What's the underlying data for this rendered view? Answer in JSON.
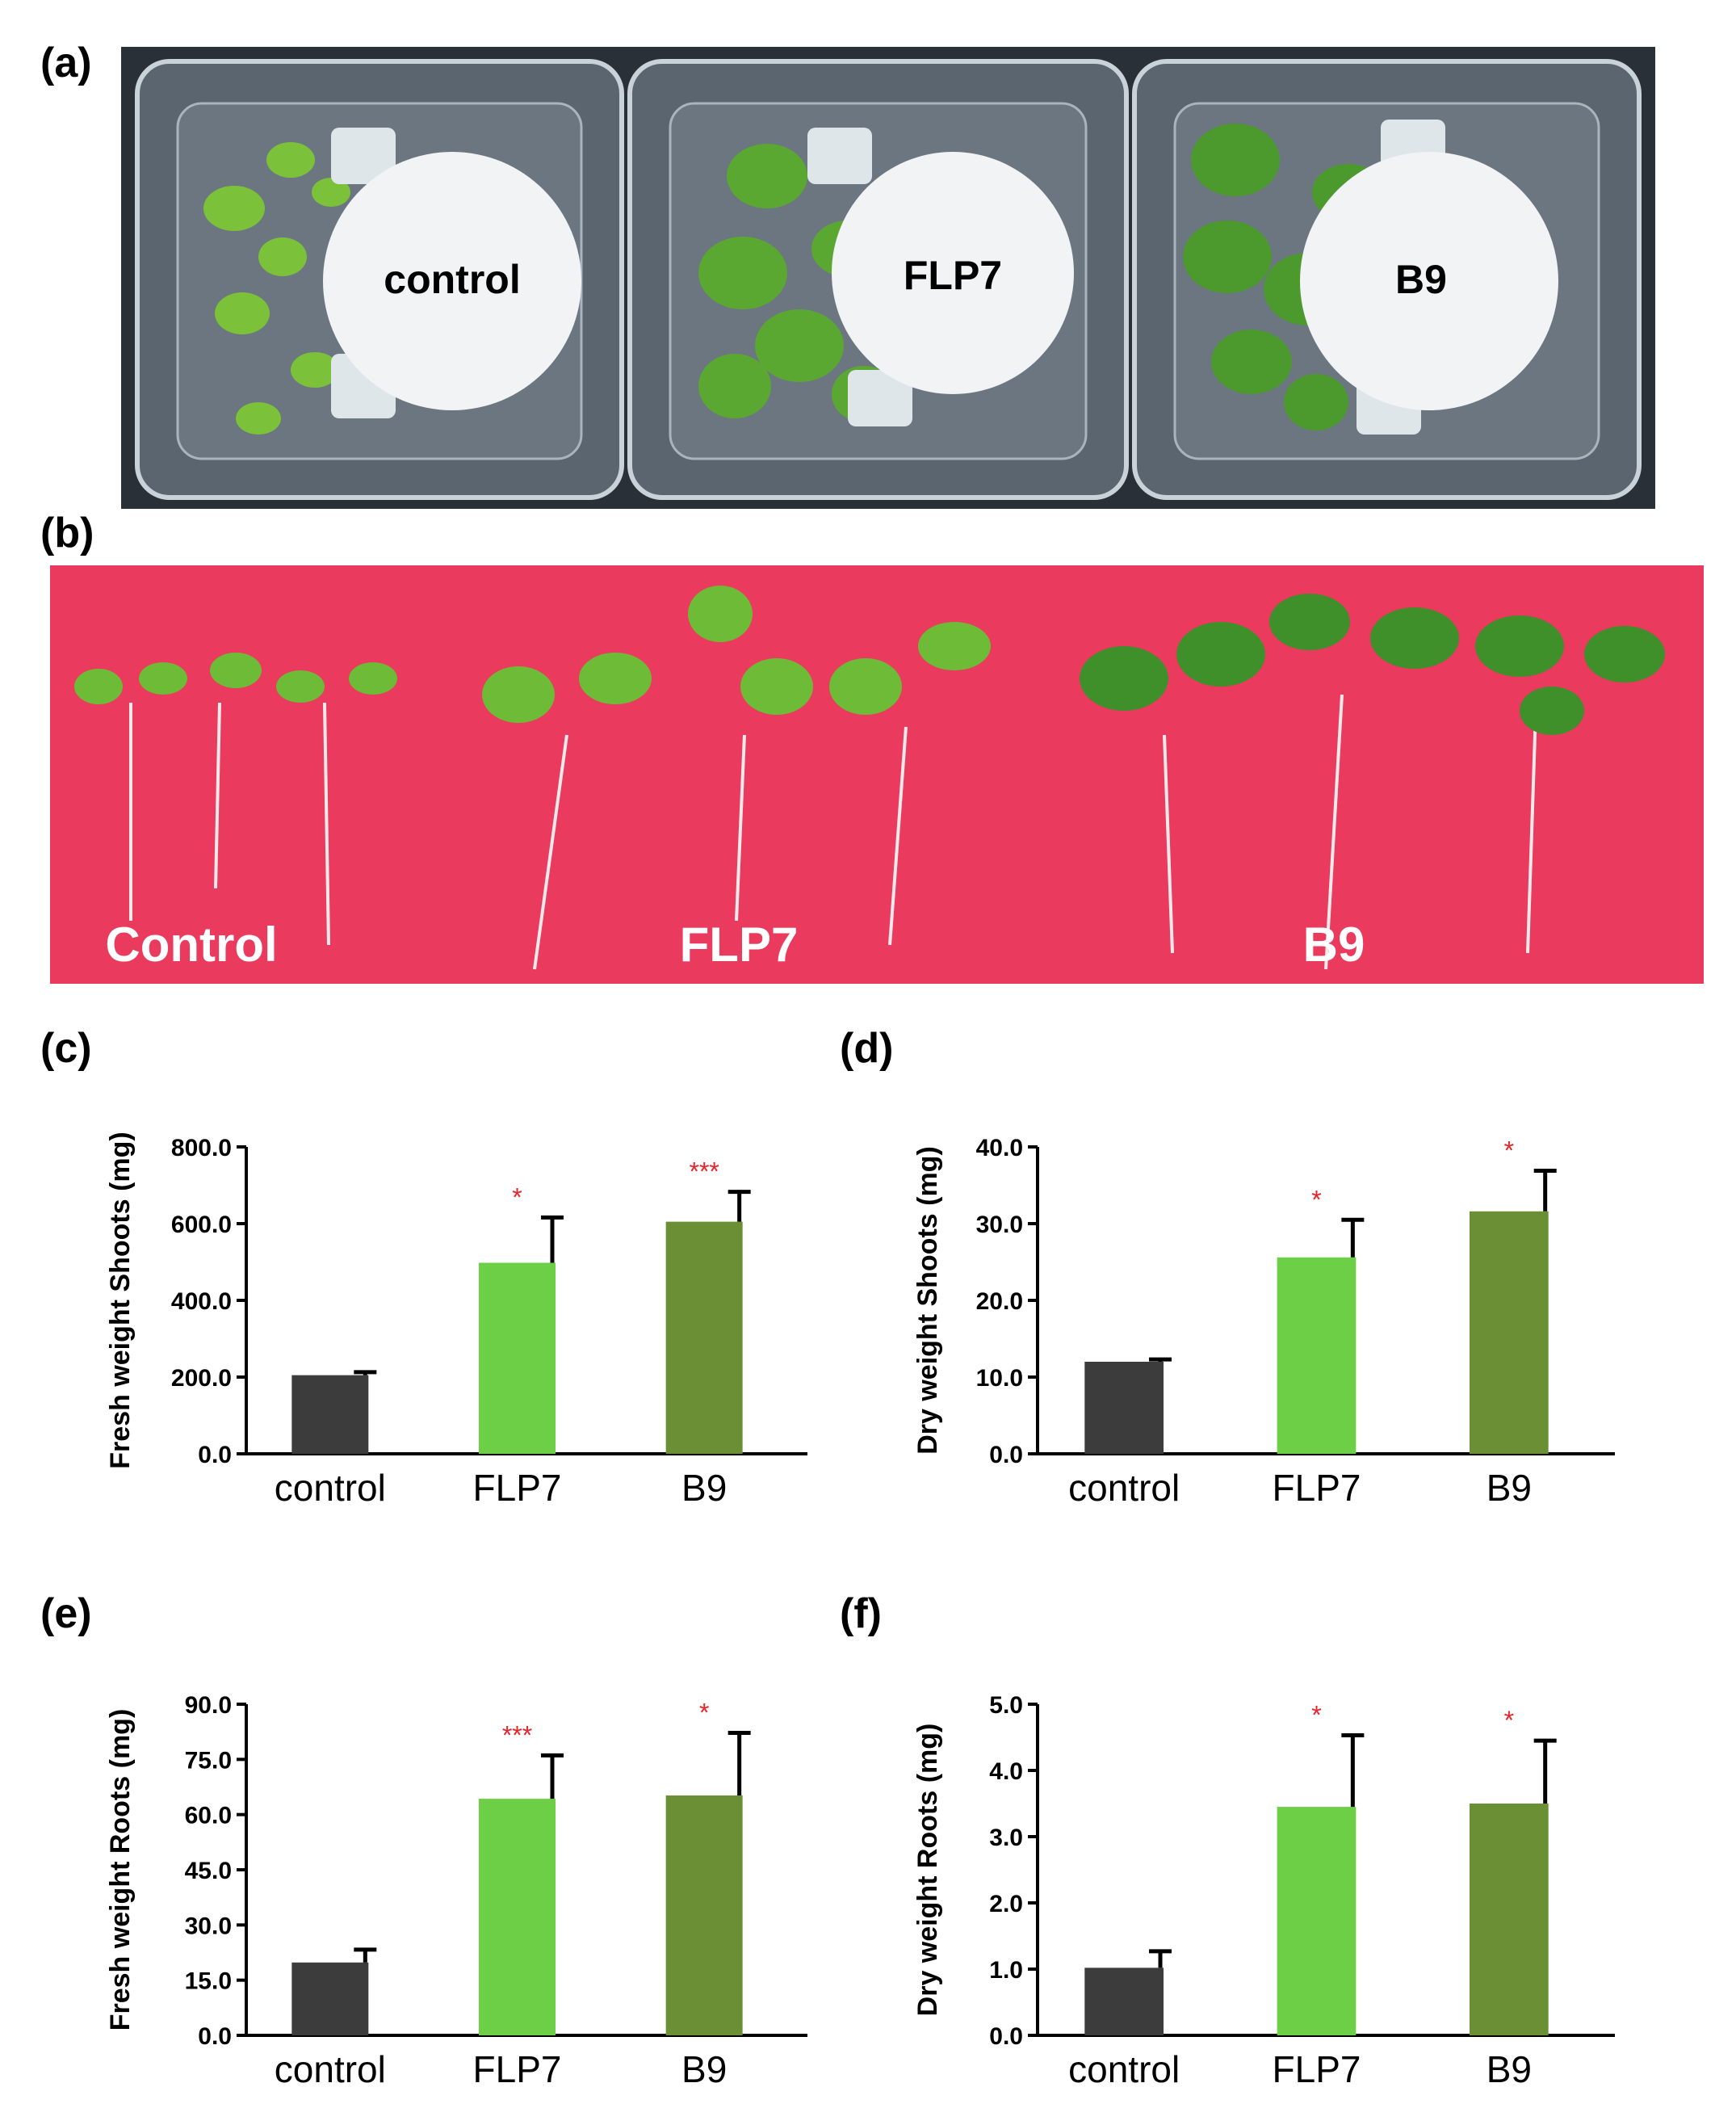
{
  "panels": {
    "a": {
      "label": "(a)",
      "tray_labels": [
        "control",
        "FLP7",
        "B9"
      ]
    },
    "b": {
      "label": "(b)",
      "labels": [
        "Control",
        "FLP7",
        "B9"
      ]
    },
    "c": {
      "label": "(c)"
    },
    "d": {
      "label": "(d)"
    },
    "e": {
      "label": "(e)"
    },
    "f": {
      "label": "(f)"
    }
  },
  "colors": {
    "control": "#3c3c3c",
    "FLP7": "#6dcf45",
    "B9": "#6a8f34",
    "significance": "#e8232a",
    "photo_a_bg": "#2a3038",
    "photo_b_bg": "#ea3b5e"
  },
  "chart_data": [
    {
      "id": "c",
      "type": "bar",
      "categories": [
        "control",
        "FLP7",
        "B9"
      ],
      "values": [
        205,
        498,
        605
      ],
      "errors": [
        8,
        118,
        78
      ],
      "significance": [
        "",
        "*",
        "***"
      ],
      "ylabel": "Fresh weight Shoots (mg)",
      "ylim": [
        0,
        800
      ],
      "yticks": [
        "0.0",
        "200.0",
        "400.0",
        "600.0",
        "800.0"
      ]
    },
    {
      "id": "d",
      "type": "bar",
      "categories": [
        "control",
        "FLP7",
        "B9"
      ],
      "values": [
        12.0,
        25.6,
        31.6
      ],
      "errors": [
        0.3,
        4.9,
        5.3
      ],
      "significance": [
        "",
        "*",
        "*"
      ],
      "ylabel": "Dry weight Shoots (mg)",
      "ylim": [
        0,
        40
      ],
      "yticks": [
        "0.0",
        "10.0",
        "20.0",
        "30.0",
        "40.0"
      ]
    },
    {
      "id": "e",
      "type": "bar",
      "categories": [
        "control",
        "FLP7",
        "B9"
      ],
      "values": [
        19.8,
        64.3,
        65.2
      ],
      "errors": [
        3.5,
        11.8,
        17.0
      ],
      "significance": [
        "",
        "***",
        "*"
      ],
      "ylabel": "Fresh weight Roots (mg)",
      "ylim": [
        0,
        90
      ],
      "yticks": [
        "0.0",
        "15.0",
        "30.0",
        "45.0",
        "60.0",
        "75.0",
        "90.0"
      ]
    },
    {
      "id": "f",
      "type": "bar",
      "categories": [
        "control",
        "FLP7",
        "B9"
      ],
      "values": [
        1.02,
        3.45,
        3.5
      ],
      "errors": [
        0.25,
        1.08,
        0.95
      ],
      "significance": [
        "",
        "*",
        "*"
      ],
      "ylabel": "Dry weight Roots (mg)",
      "ylim": [
        0,
        5
      ],
      "yticks": [
        "0.0",
        "1.0",
        "2.0",
        "3.0",
        "4.0",
        "5.0"
      ]
    }
  ]
}
